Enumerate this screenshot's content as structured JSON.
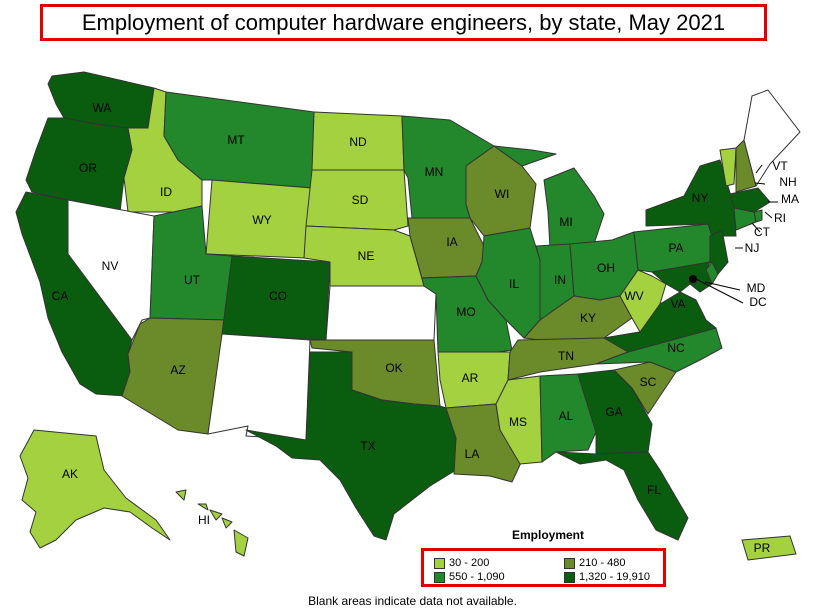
{
  "title": "Employment of computer hardware engineers, by state, May 2021",
  "legend": {
    "title": "Employment",
    "items": [
      {
        "label": "30 - 200",
        "color": "#a3d13f"
      },
      {
        "label": "210 - 480",
        "color": "#6b8b2a"
      },
      {
        "label": "550 - 1,090",
        "color": "#23882b"
      },
      {
        "label": "1,320 - 19,910",
        "color": "#0a5d0f"
      }
    ]
  },
  "no_data_color": "#ffffff",
  "footnote": "Blank areas indicate data not available.",
  "states": {
    "WA": 3,
    "OR": 3,
    "CA": 3,
    "ID": 0,
    "NV": -1,
    "MT": 2,
    "WY": 0,
    "UT": 2,
    "AZ": 1,
    "CO": 3,
    "NM": -1,
    "ND": 0,
    "SD": 0,
    "NE": 0,
    "KS": -1,
    "OK": 1,
    "TX": 3,
    "MN": 2,
    "IA": 1,
    "MO": 2,
    "AR": 0,
    "LA": 1,
    "WI": 1,
    "IL": 2,
    "MI": 2,
    "IN": 2,
    "OH": 2,
    "KY": 1,
    "TN": 1,
    "MS": 0,
    "AL": 2,
    "GA": 3,
    "FL": 3,
    "SC": 1,
    "NC": 2,
    "VA": 3,
    "WV": 0,
    "PA": 2,
    "NY": 3,
    "VT": 0,
    "NH": 1,
    "ME": -1,
    "MA": 3,
    "RI": 2,
    "CT": 2,
    "NJ": 3,
    "DE": 2,
    "MD": 3,
    "DC": 3,
    "AK": 0,
    "HI": 0,
    "PR": 0
  },
  "state_labels": [
    "WA",
    "OR",
    "CA",
    "ID",
    "NV",
    "MT",
    "WY",
    "UT",
    "AZ",
    "CO",
    "ND",
    "SD",
    "NE",
    "OK",
    "TX",
    "MN",
    "IA",
    "MO",
    "AR",
    "LA",
    "WI",
    "IL",
    "MI",
    "IN",
    "OH",
    "KY",
    "TN",
    "MS",
    "AL",
    "GA",
    "FL",
    "SC",
    "NC",
    "VA",
    "WV",
    "PA",
    "NY",
    "VT",
    "NH",
    "MA",
    "RI",
    "CT",
    "NJ",
    "MD",
    "DC",
    "AK",
    "HI",
    "PR"
  ]
}
